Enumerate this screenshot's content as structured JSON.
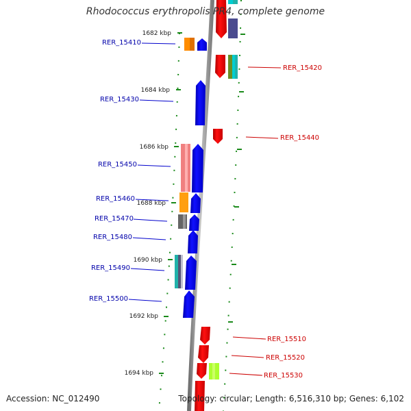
{
  "title": "Rhodococcus erythropolis PR4, complete genome",
  "footer": {
    "accession": "Accession: NC_012490",
    "summary": "Topology: circular; Length: 6,516,310 bp; Genes: 6,102"
  },
  "colors": {
    "forward_gene": "#0000ff",
    "reverse_gene": "#ff0000",
    "forward_label": "#0000aa",
    "reverse_label": "#cc0000",
    "backbone": "#8a8a8a",
    "ticks": "#1a8a1a"
  },
  "scale_labels": [
    "1682 kbp",
    "1684 kbp",
    "1686 kbp",
    "1688 kbp",
    "1690 kbp",
    "1692 kbp",
    "1694 kbp"
  ],
  "forward_labels": [
    "RER_15410",
    "RER_15430",
    "RER_15450",
    "RER_15460",
    "RER_15470",
    "RER_15480",
    "RER_15490",
    "RER_15500"
  ],
  "reverse_labels": [
    "RER_15420",
    "RER_15440",
    "RER_15510",
    "RER_15520",
    "RER_15530"
  ]
}
